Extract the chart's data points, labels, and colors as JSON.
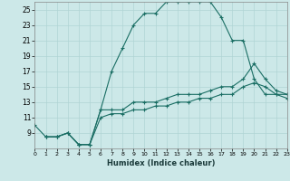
{
  "xlabel": "Humidex (Indice chaleur)",
  "ylabel": "",
  "bg_color": "#cce8e8",
  "line_color": "#1a6e64",
  "grid_color": "#b0d4d4",
  "xmin": 0,
  "xmax": 23,
  "ymin": 7,
  "ymax": 26,
  "yticks": [
    9,
    11,
    13,
    15,
    17,
    19,
    21,
    23,
    25
  ],
  "xticks": [
    0,
    1,
    2,
    3,
    4,
    5,
    6,
    7,
    8,
    9,
    10,
    11,
    12,
    13,
    14,
    15,
    16,
    17,
    18,
    19,
    20,
    21,
    22,
    23
  ],
  "series": [
    {
      "x": [
        0,
        1,
        2,
        3,
        4,
        5,
        6,
        7,
        8,
        9,
        10,
        11,
        12,
        13,
        14,
        15,
        16,
        17,
        18,
        19,
        20,
        21,
        22,
        23
      ],
      "y": [
        10,
        8.5,
        8.5,
        9,
        7.5,
        7.5,
        12,
        17,
        20,
        23,
        24.5,
        24.5,
        26,
        26,
        26,
        26,
        26,
        24,
        21,
        21,
        16,
        14,
        14,
        14
      ]
    },
    {
      "x": [
        1,
        2,
        3,
        4,
        5,
        6,
        7,
        8,
        9,
        10,
        11,
        12,
        13,
        14,
        15,
        16,
        17,
        18,
        19,
        20,
        21,
        22,
        23
      ],
      "y": [
        8.5,
        8.5,
        9,
        7.5,
        7.5,
        12,
        12,
        12,
        13,
        13,
        13,
        13.5,
        14,
        14,
        14,
        14.5,
        15,
        15,
        16,
        18,
        16,
        14.5,
        14
      ]
    },
    {
      "x": [
        1,
        2,
        3,
        4,
        5,
        6,
        7,
        8,
        9,
        10,
        11,
        12,
        13,
        14,
        15,
        16,
        17,
        18,
        19,
        20,
        21,
        22,
        23
      ],
      "y": [
        8.5,
        8.5,
        9,
        7.5,
        7.5,
        11,
        11.5,
        11.5,
        12,
        12,
        12.5,
        12.5,
        13,
        13,
        13.5,
        13.5,
        14,
        14,
        15,
        15.5,
        15,
        14,
        13.5
      ]
    }
  ]
}
